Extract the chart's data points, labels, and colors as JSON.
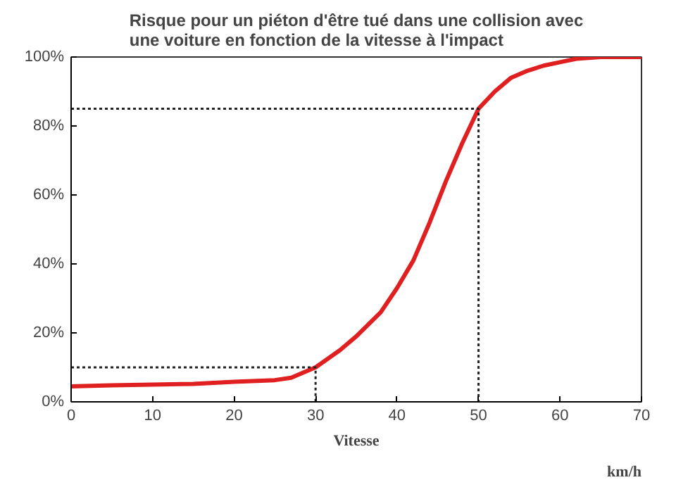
{
  "chart_data": {
    "type": "line",
    "title": "Risque pour un piéton d'être tué dans une collision avec\nune voiture en fonction de la vitesse à l'impact",
    "xlabel": "Vitesse",
    "annotations": [
      "km/h"
    ],
    "xlim": [
      0,
      70
    ],
    "xticks": [
      0,
      10,
      20,
      30,
      40,
      50,
      60,
      70
    ],
    "ylim": [
      0,
      100
    ],
    "yticks": [
      {
        "value": 0,
        "label": "0%"
      },
      {
        "value": 20,
        "label": "20%"
      },
      {
        "value": 40,
        "label": "40%"
      },
      {
        "value": 60,
        "label": "60%"
      },
      {
        "value": 80,
        "label": "80%"
      },
      {
        "value": 100,
        "label": "100%"
      }
    ],
    "grid": false,
    "marker": "none",
    "series": [
      {
        "color": "#e02020",
        "line_style": "solid",
        "x": [
          0,
          5,
          10,
          15,
          20,
          25,
          27,
          30,
          33,
          35,
          38,
          40,
          42,
          44,
          46,
          48,
          50,
          52,
          54,
          56,
          58,
          60,
          62,
          65,
          70
        ],
        "values": [
          4.5,
          4.8,
          5,
          5.2,
          5.8,
          6.3,
          7,
          10,
          15,
          19,
          26,
          33,
          41,
          52,
          64,
          75,
          85,
          90,
          94,
          96,
          97.5,
          98.5,
          99.5,
          100,
          100
        ]
      },
      {
        "color": "#222222",
        "line_style": "dotted",
        "x": [
          0,
          30,
          30
        ],
        "values": [
          10,
          10,
          0
        ]
      },
      {
        "color": "#222222",
        "line_style": "dotted",
        "x": [
          0,
          50,
          50
        ],
        "values": [
          85,
          85,
          0
        ]
      }
    ]
  }
}
